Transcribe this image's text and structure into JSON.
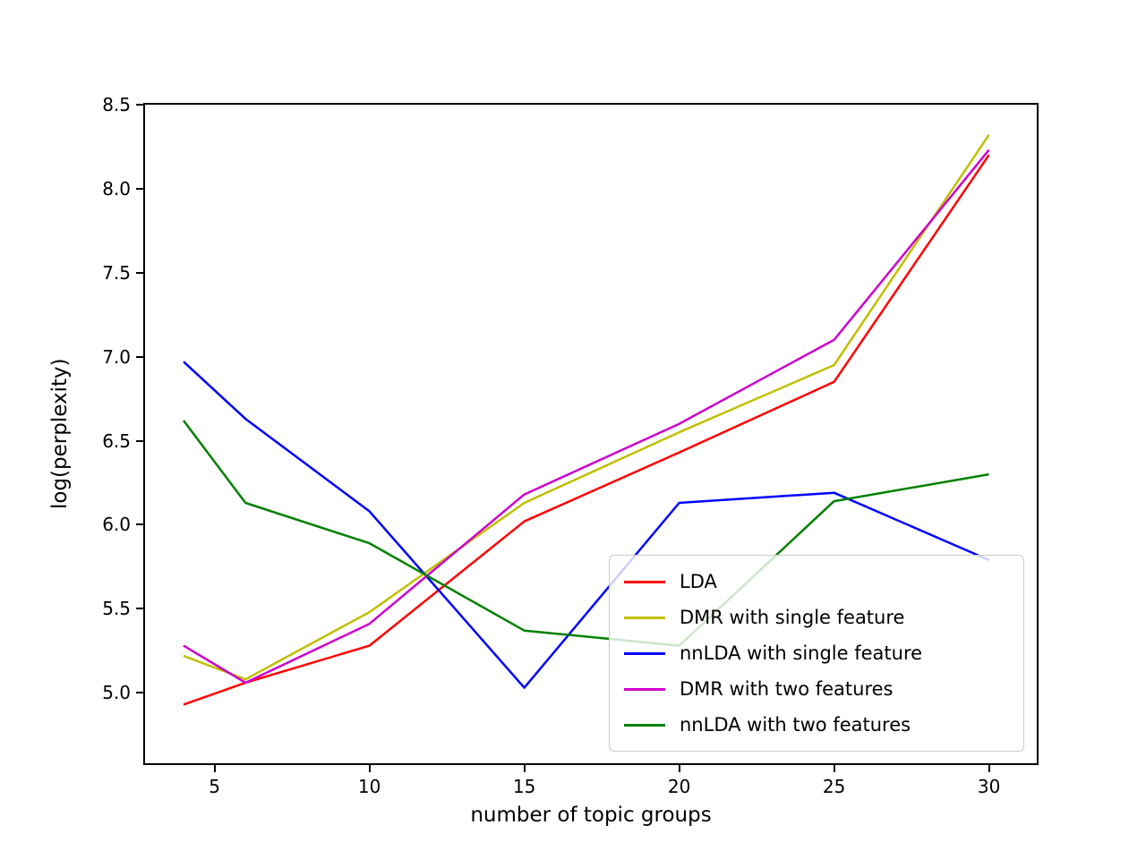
{
  "figure": {
    "background": "#ffffff",
    "spine_color": "#000000"
  },
  "chart_data": {
    "type": "line",
    "title": "",
    "xlabel": "number of topic groups",
    "ylabel": "log(perplexity)",
    "xlim": [
      2.7,
      31.6
    ],
    "ylim": [
      4.57,
      8.51
    ],
    "grid": false,
    "legend_position": "lower-right-inside",
    "xticks": [
      5,
      10,
      15,
      20,
      25,
      30
    ],
    "xtick_labels": [
      "5",
      "10",
      "15",
      "20",
      "25",
      "30"
    ],
    "yticks": [
      5.0,
      5.5,
      6.0,
      6.5,
      7.0,
      7.5,
      8.0,
      8.5
    ],
    "ytick_labels": [
      "5.0",
      "5.5",
      "6.0",
      "6.5",
      "7.0",
      "7.5",
      "8.0",
      "8.5"
    ],
    "x": [
      4,
      6,
      10,
      15,
      20,
      25,
      30
    ],
    "series": [
      {
        "name": "LDA",
        "color": "#ff0000",
        "values": [
          4.93,
          5.06,
          5.28,
          6.02,
          6.43,
          6.85,
          8.2
        ]
      },
      {
        "name": "DMR with single feature",
        "color": "#bfbf00",
        "values": [
          5.22,
          5.08,
          5.48,
          6.13,
          6.55,
          6.95,
          8.32
        ]
      },
      {
        "name": "nnLDA with single feature",
        "color": "#0000ff",
        "values": [
          6.97,
          6.63,
          6.08,
          5.03,
          6.13,
          6.19,
          5.79
        ]
      },
      {
        "name": "DMR with two features",
        "color": "#cc00cc",
        "values": [
          5.28,
          5.06,
          5.41,
          6.18,
          6.6,
          7.1,
          8.23
        ]
      },
      {
        "name": "nnLDA with two features",
        "color": "#008000",
        "values": [
          6.62,
          6.13,
          5.89,
          5.37,
          5.28,
          6.14,
          6.3
        ]
      }
    ]
  }
}
